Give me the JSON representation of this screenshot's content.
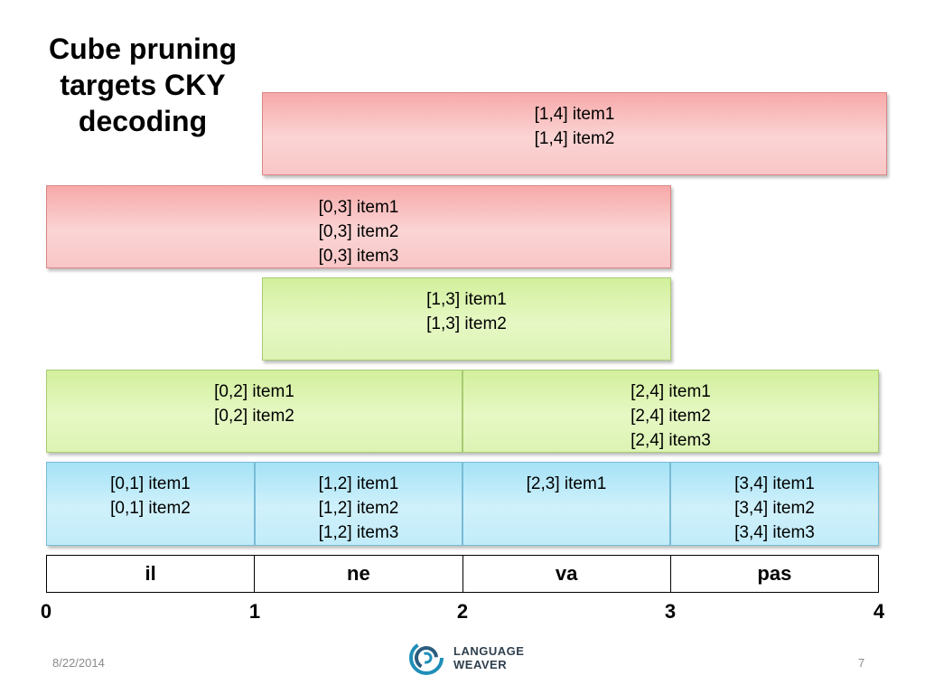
{
  "title": [
    "Cube pruning",
    "targets CKY",
    "decoding"
  ],
  "cells": {
    "c14": [
      "[1,4] item1",
      "[1,4] item2"
    ],
    "c03": [
      "[0,3] item1",
      "[0,3] item2",
      "[0,3] item3"
    ],
    "c13": [
      "[1,3] item1",
      "[1,3] item2"
    ],
    "c02": [
      "[0,2] item1",
      "[0,2] item2"
    ],
    "c24": [
      "[2,4] item1",
      "[2,4] item2",
      "[2,4] item3"
    ],
    "c01": [
      "[0,1] item1",
      "[0,1] item2"
    ],
    "c12": [
      "[1,2] item1",
      "[1,2] item2",
      "[1,2] item3"
    ],
    "c23": [
      "[2,3] item1"
    ],
    "c34": [
      "[3,4] item1",
      "[3,4] item2",
      "[3,4] item3"
    ]
  },
  "words": [
    "il",
    "ne",
    "va",
    "pas"
  ],
  "positions": [
    "0",
    "1",
    "2",
    "3",
    "4"
  ],
  "colors": {
    "span4": "#f7a9a9",
    "span2_3": "#d2ef9c",
    "span1": "#a5e2f6"
  },
  "footer": {
    "date": "8/22/2014",
    "page": "7",
    "logo_line1": "LANGUAGE",
    "logo_line2": "WEAVER"
  }
}
